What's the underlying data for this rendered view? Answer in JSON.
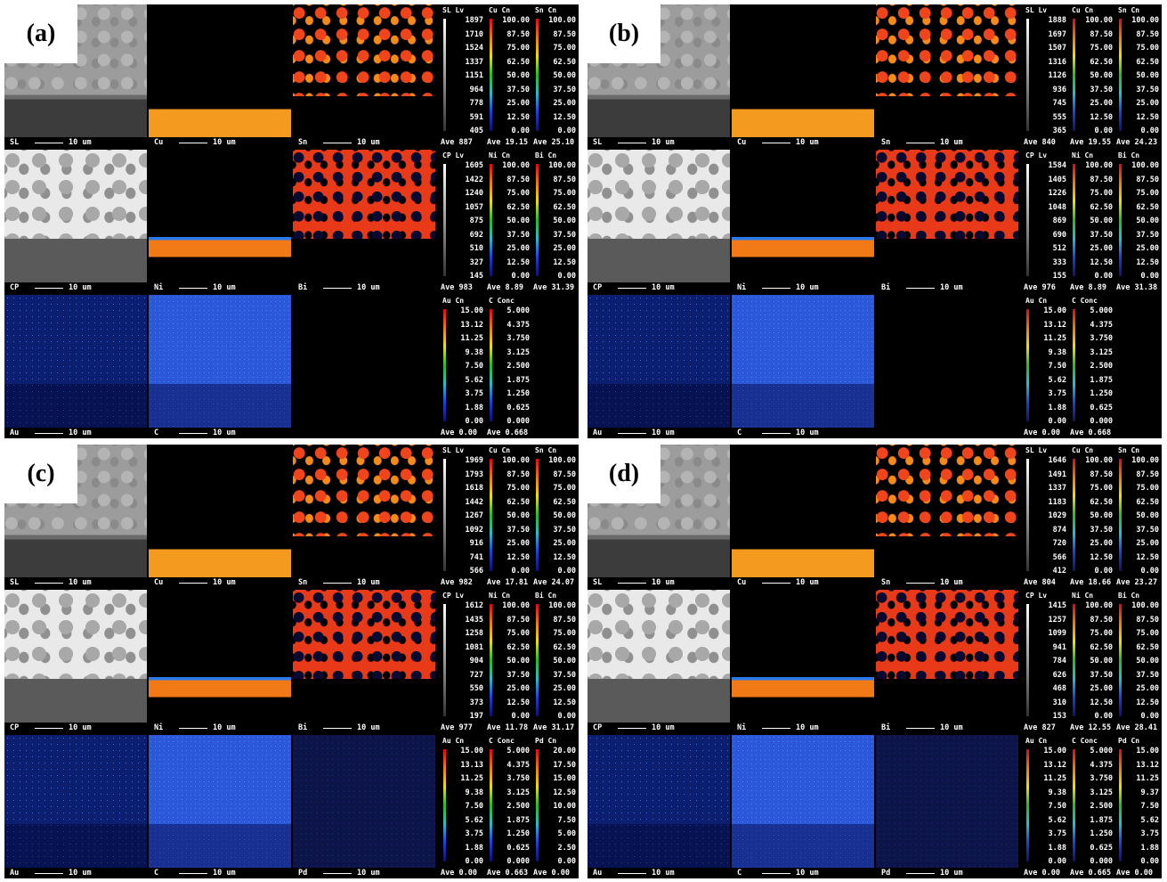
{
  "panels": [
    {
      "label": "(a)",
      "rows": [
        {
          "images": [
            {
              "name": "SL",
              "scale": "10 um"
            },
            {
              "name": "Cu",
              "scale": "10 um"
            },
            {
              "name": "Sn",
              "scale": "10 um"
            }
          ],
          "legend": [
            {
              "header": "SL Lv",
              "values": [
                "1897",
                "1710",
                "1524",
                "1337",
                "1151",
                "964",
                "778",
                "591",
                "405"
              ],
              "ave": "Ave 887"
            },
            {
              "header": "Cu Cn",
              "values": [
                "100.00",
                "87.50",
                "75.00",
                "62.50",
                "50.00",
                "37.50",
                "25.00",
                "12.50",
                "0.00"
              ],
              "ave": "Ave 19.15"
            },
            {
              "header": "Sn Cn",
              "values": [
                "100.00",
                "87.50",
                "75.00",
                "62.50",
                "50.00",
                "37.50",
                "25.00",
                "12.50",
                "0.00"
              ],
              "ave": "Ave 25.10"
            }
          ]
        },
        {
          "images": [
            {
              "name": "CP",
              "scale": "10 um"
            },
            {
              "name": "Ni",
              "scale": "10 um"
            },
            {
              "name": "Bi",
              "scale": "10 um"
            }
          ],
          "legend": [
            {
              "header": "CP Lv",
              "values": [
                "1605",
                "1422",
                "1240",
                "1057",
                "875",
                "692",
                "510",
                "327",
                "145"
              ],
              "ave": "Ave 983"
            },
            {
              "header": "Ni Cn",
              "values": [
                "100.00",
                "87.50",
                "75.00",
                "62.50",
                "50.00",
                "37.50",
                "25.00",
                "12.50",
                "0.00"
              ],
              "ave": "Ave 8.89"
            },
            {
              "header": "Bi Cn",
              "values": [
                "100.00",
                "87.50",
                "75.00",
                "62.50",
                "50.00",
                "37.50",
                "25.00",
                "12.50",
                "0.00"
              ],
              "ave": "Ave 31.39"
            }
          ]
        },
        {
          "images": [
            {
              "name": "Au",
              "scale": "10 um"
            },
            {
              "name": "C",
              "scale": "10 um"
            }
          ],
          "legend": [
            {
              "header": "Au Cn",
              "values": [
                "15.00",
                "13.12",
                "11.25",
                "9.38",
                "7.50",
                "5.62",
                "3.75",
                "1.88",
                "0.00"
              ],
              "ave": "Ave 0.00"
            },
            {
              "header": "C Conc",
              "values": [
                "5.000",
                "4.375",
                "3.750",
                "3.125",
                "2.500",
                "1.875",
                "1.250",
                "0.625",
                "0.000"
              ],
              "ave": "Ave 0.668"
            }
          ]
        }
      ]
    },
    {
      "label": "(b)",
      "rows": [
        {
          "images": [
            {
              "name": "SL",
              "scale": "10 um"
            },
            {
              "name": "Cu",
              "scale": "10 um"
            },
            {
              "name": "Sn",
              "scale": "10 um"
            }
          ],
          "legend": [
            {
              "header": "SL Lv",
              "values": [
                "1888",
                "1697",
                "1507",
                "1316",
                "1126",
                "936",
                "745",
                "555",
                "365"
              ],
              "ave": "Ave 840"
            },
            {
              "header": "Cu Cn",
              "values": [
                "100.00",
                "87.50",
                "75.00",
                "62.50",
                "50.00",
                "37.50",
                "25.00",
                "12.50",
                "0.00"
              ],
              "ave": "Ave 19.55"
            },
            {
              "header": "Sn Cn",
              "values": [
                "100.00",
                "87.50",
                "75.00",
                "62.50",
                "50.00",
                "37.50",
                "25.00",
                "12.50",
                "0.00"
              ],
              "ave": "Ave 24.23"
            }
          ]
        },
        {
          "images": [
            {
              "name": "CP",
              "scale": "10 um"
            },
            {
              "name": "Ni",
              "scale": "10 um"
            },
            {
              "name": "Bi",
              "scale": "10 um"
            }
          ],
          "legend": [
            {
              "header": "CP Lv",
              "values": [
                "1584",
                "1405",
                "1226",
                "1048",
                "869",
                "690",
                "512",
                "333",
                "155"
              ],
              "ave": "Ave 976"
            },
            {
              "header": "Ni Cn",
              "values": [
                "100.00",
                "87.50",
                "75.00",
                "62.50",
                "50.00",
                "37.50",
                "25.00",
                "12.50",
                "0.00"
              ],
              "ave": "Ave 8.89"
            },
            {
              "header": "Bi Cn",
              "values": [
                "100.00",
                "87.50",
                "75.00",
                "62.50",
                "50.00",
                "37.50",
                "25.00",
                "12.50",
                "0.00"
              ],
              "ave": "Ave 31.38"
            }
          ]
        },
        {
          "images": [
            {
              "name": "Au",
              "scale": "10 um"
            },
            {
              "name": "C",
              "scale": "10 um"
            }
          ],
          "legend": [
            {
              "header": "Au Cn",
              "values": [
                "15.00",
                "13.12",
                "11.25",
                "9.38",
                "7.50",
                "5.62",
                "3.75",
                "1.88",
                "0.00"
              ],
              "ave": "Ave 0.00"
            },
            {
              "header": "C Conc",
              "values": [
                "5.000",
                "4.375",
                "3.750",
                "3.125",
                "2.500",
                "1.875",
                "1.250",
                "0.625",
                "0.000"
              ],
              "ave": "Ave 0.668"
            }
          ]
        }
      ]
    },
    {
      "label": "(c)",
      "rows": [
        {
          "images": [
            {
              "name": "SL",
              "scale": "10 um"
            },
            {
              "name": "Cu",
              "scale": "10 um"
            },
            {
              "name": "Sn",
              "scale": "10 um"
            }
          ],
          "legend": [
            {
              "header": "SL Lv",
              "values": [
                "1969",
                "1793",
                "1618",
                "1442",
                "1267",
                "1092",
                "916",
                "741",
                "566"
              ],
              "ave": "Ave 982"
            },
            {
              "header": "Cu Cn",
              "values": [
                "100.00",
                "87.50",
                "75.00",
                "62.50",
                "50.00",
                "37.50",
                "25.00",
                "12.50",
                "0.00"
              ],
              "ave": "Ave 17.81"
            },
            {
              "header": "Sn Cn",
              "values": [
                "100.00",
                "87.50",
                "75.00",
                "62.50",
                "50.00",
                "37.50",
                "25.00",
                "12.50",
                "0.00"
              ],
              "ave": "Ave 24.07"
            }
          ]
        },
        {
          "images": [
            {
              "name": "CP",
              "scale": "10 um"
            },
            {
              "name": "Ni",
              "scale": "10 um"
            },
            {
              "name": "Bi",
              "scale": "10 um"
            }
          ],
          "legend": [
            {
              "header": "CP Lv",
              "values": [
                "1612",
                "1435",
                "1258",
                "1081",
                "904",
                "727",
                "550",
                "373",
                "197"
              ],
              "ave": "Ave 977"
            },
            {
              "header": "Ni Cn",
              "values": [
                "100.00",
                "87.50",
                "75.00",
                "62.50",
                "50.00",
                "37.50",
                "25.00",
                "12.50",
                "0.00"
              ],
              "ave": "Ave 11.78"
            },
            {
              "header": "Bi Cn",
              "values": [
                "100.00",
                "87.50",
                "75.00",
                "62.50",
                "50.00",
                "37.50",
                "25.00",
                "12.50",
                "0.00"
              ],
              "ave": "Ave 31.17"
            }
          ]
        },
        {
          "images": [
            {
              "name": "Au",
              "scale": "10 um"
            },
            {
              "name": "C",
              "scale": "10 um"
            },
            {
              "name": "Pd",
              "scale": "10 um"
            }
          ],
          "legend": [
            {
              "header": "Au Cn",
              "values": [
                "15.00",
                "13.13",
                "11.25",
                "9.38",
                "7.50",
                "5.62",
                "3.75",
                "1.88",
                "0.00"
              ],
              "ave": "Ave 0.00"
            },
            {
              "header": "C Conc",
              "values": [
                "5.000",
                "4.375",
                "3.750",
                "3.125",
                "2.500",
                "1.875",
                "1.250",
                "0.625",
                "0.000"
              ],
              "ave": "Ave 0.663"
            },
            {
              "header": "Pd Cn",
              "values": [
                "20.00",
                "17.50",
                "15.00",
                "12.50",
                "10.00",
                "7.50",
                "5.00",
                "2.50",
                "0.00"
              ],
              "ave": "Ave 0.00"
            }
          ]
        }
      ]
    },
    {
      "label": "(d)",
      "rows": [
        {
          "images": [
            {
              "name": "SL",
              "scale": "10 um"
            },
            {
              "name": "Cu",
              "scale": "10 um"
            },
            {
              "name": "Sn",
              "scale": "10 um"
            }
          ],
          "legend": [
            {
              "header": "SL Lv",
              "values": [
                "1646",
                "1491",
                "1337",
                "1183",
                "1029",
                "874",
                "720",
                "566",
                "412"
              ],
              "ave": "Ave 804"
            },
            {
              "header": "Cu Cn",
              "values": [
                "100.00",
                "87.50",
                "75.00",
                "62.50",
                "50.00",
                "37.50",
                "25.00",
                "12.50",
                "0.00"
              ],
              "ave": "Ave 18.66"
            },
            {
              "header": "Sn Cn",
              "values": [
                "100.00",
                "87.50",
                "75.00",
                "62.50",
                "50.00",
                "37.50",
                "25.00",
                "12.50",
                "0.00"
              ],
              "ave": "Ave 23.27"
            }
          ]
        },
        {
          "images": [
            {
              "name": "CP",
              "scale": "10 um"
            },
            {
              "name": "Ni",
              "scale": "10 um"
            },
            {
              "name": "Bi",
              "scale": "10 um"
            }
          ],
          "legend": [
            {
              "header": "CP Lv",
              "values": [
                "1415",
                "1257",
                "1099",
                "941",
                "784",
                "626",
                "468",
                "310",
                "153"
              ],
              "ave": "Ave 827"
            },
            {
              "header": "Ni Cn",
              "values": [
                "100.00",
                "87.50",
                "75.00",
                "62.50",
                "50.00",
                "37.50",
                "25.00",
                "12.50",
                "0.00"
              ],
              "ave": "Ave 12.55"
            },
            {
              "header": "Bi Cn",
              "values": [
                "100.00",
                "87.50",
                "75.00",
                "62.50",
                "50.00",
                "37.50",
                "25.00",
                "12.50",
                "0.00"
              ],
              "ave": "Ave 28.41"
            }
          ]
        },
        {
          "images": [
            {
              "name": "Au",
              "scale": "10 um"
            },
            {
              "name": "C",
              "scale": "10 um"
            },
            {
              "name": "Pd",
              "scale": "10 um"
            }
          ],
          "legend": [
            {
              "header": "Au Cn",
              "values": [
                "15.00",
                "13.12",
                "11.25",
                "9.38",
                "7.50",
                "5.62",
                "3.75",
                "1.88",
                "0.00"
              ],
              "ave": "Ave 0.00"
            },
            {
              "header": "C Conc",
              "values": [
                "5.000",
                "4.375",
                "3.750",
                "3.125",
                "2.500",
                "1.875",
                "1.250",
                "0.625",
                "0.000"
              ],
              "ave": "Ave 0.665"
            },
            {
              "header": "Pd Cn",
              "values": [
                "15.00",
                "13.12",
                "11.25",
                "9.37",
                "7.50",
                "5.62",
                "3.75",
                "1.88",
                "0.00"
              ],
              "ave": "Ave 0.00"
            }
          ]
        }
      ]
    }
  ]
}
